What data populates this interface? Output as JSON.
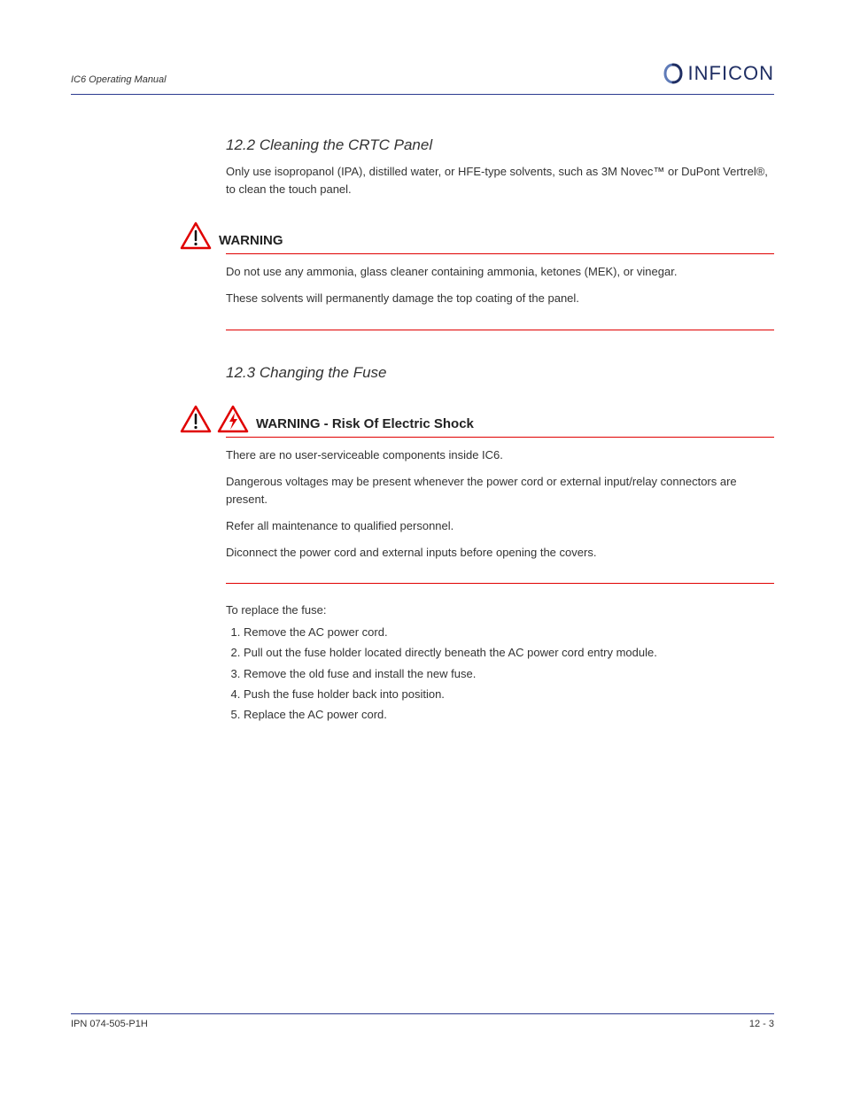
{
  "header": {
    "doc_title": "IC6 Operating Manual",
    "logo_text": "INFICON"
  },
  "colors": {
    "rule": "#2b3a8f",
    "warning_rule": "#e00000",
    "warning_icon": "#e00000",
    "logo_text": "#1f2e63",
    "logo_accent": "#5f7bb8",
    "body_text": "#333333",
    "heading_text": "#222222"
  },
  "sections": [
    {
      "number": "12.2",
      "title": "Cleaning the CRTC Panel",
      "paragraphs": [
        "Only use isopropanol (IPA), distilled water, or HFE-type solvents, such as 3M Novec™ or DuPont Vertrel®, to clean the touch panel."
      ],
      "warning": {
        "icons": [
          "alert"
        ],
        "label": "WARNING",
        "body": "Do not use any ammonia, glass cleaner containing ammonia, ketones (MEK), or vinegar.\n\nThese solvents will permanently damage the top coating of the panel."
      }
    },
    {
      "number": "12.3",
      "title": "Changing the Fuse",
      "warning": {
        "icons": [
          "alert",
          "electric"
        ],
        "label": "WARNING - Risk Of Electric Shock",
        "body": "There are no user-serviceable components inside IC6.\n\nDangerous voltages may be present whenever the power cord or external input/relay connectors are present.\n\nRefer all maintenance to qualified personnel.\n\nDiconnect the power cord and external inputs before opening the covers."
      },
      "steps_intro": "To replace the fuse:",
      "steps": [
        "Remove the AC power cord.",
        "Pull out the fuse holder located directly beneath the AC power cord entry module.",
        "Remove the old fuse and install the new fuse.",
        "Push the fuse holder back into position.",
        "Replace the AC power cord."
      ]
    }
  ],
  "footer": {
    "left": "IPN 074-505-P1H",
    "right": "12 - 3"
  }
}
